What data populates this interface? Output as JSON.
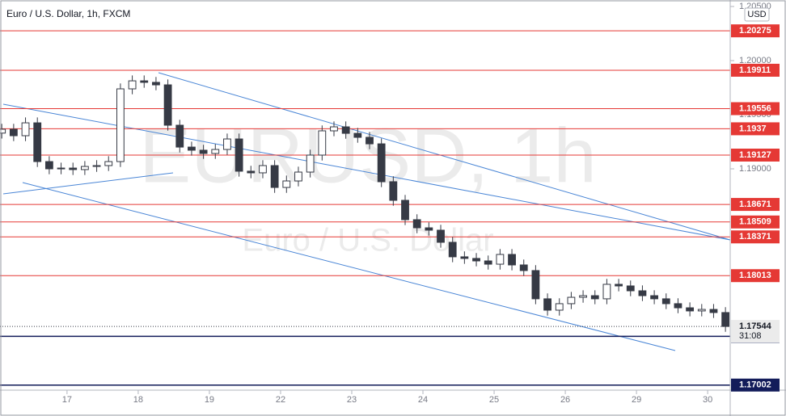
{
  "chart_data": {
    "type": "candlestick",
    "title": "Euro / U.S. Dollar, 1h, FXCM",
    "watermark": "EURUSD, 1h",
    "watermark_subtitle": "Euro / U.S. Dollar",
    "currency": "USD",
    "x": [
      2,
      6,
      10,
      14,
      18,
      22,
      26,
      30,
      34,
      38,
      42,
      46,
      50,
      54,
      58,
      62,
      66,
      70,
      74,
      78,
      82,
      86,
      90,
      94,
      98,
      102,
      106,
      110,
      114,
      118,
      122,
      126,
      130,
      134,
      138,
      142,
      146,
      150,
      154,
      158,
      162,
      166,
      170,
      174,
      178,
      182,
      186,
      190,
      194,
      198,
      202,
      206,
      210,
      214,
      218,
      222,
      226,
      230,
      234,
      238,
      242,
      246
    ],
    "open": [
      1.1933,
      1.19366,
      1.19306,
      1.19425,
      1.19067,
      1.19,
      1.19007,
      1.18993,
      1.19022,
      1.1903,
      1.19067,
      1.19739,
      1.19813,
      1.19799,
      1.19776,
      1.19403,
      1.19201,
      1.19172,
      1.19142,
      1.19179,
      1.19276,
      1.18978,
      1.18963,
      1.1903,
      1.18828,
      1.18888,
      1.1897,
      1.19127,
      1.19351,
      1.19388,
      1.19328,
      1.19291,
      1.19231,
      1.18881,
      1.18709,
      1.1853,
      1.18455,
      1.18433,
      1.18321,
      1.18187,
      1.18172,
      1.18149,
      1.18119,
      1.18209,
      1.18112,
      1.1806,
      1.17799,
      1.17694,
      1.17754,
      1.17813,
      1.17828,
      1.17799,
      1.17933,
      1.17918,
      1.17873,
      1.17828,
      1.17799,
      1.17754,
      1.17716,
      1.17687,
      1.17701,
      1.17672
    ],
    "high": [
      1.19416,
      1.19416,
      1.19475,
      1.19475,
      1.19117,
      1.19057,
      1.19057,
      1.19072,
      1.1908,
      1.19117,
      1.19789,
      1.19863,
      1.19863,
      1.19849,
      1.19826,
      1.19453,
      1.19251,
      1.19222,
      1.19229,
      1.19326,
      1.19326,
      1.19028,
      1.1908,
      1.1908,
      1.18938,
      1.1902,
      1.19177,
      1.19401,
      1.19438,
      1.19438,
      1.19378,
      1.19341,
      1.19281,
      1.18931,
      1.18759,
      1.1858,
      1.18505,
      1.18483,
      1.18371,
      1.18237,
      1.18222,
      1.18199,
      1.18259,
      1.18259,
      1.18162,
      1.1811,
      1.17849,
      1.17804,
      1.17863,
      1.17878,
      1.17878,
      1.17983,
      1.17983,
      1.17968,
      1.17923,
      1.17878,
      1.17849,
      1.17804,
      1.17766,
      1.17751,
      1.17751,
      1.17722
    ],
    "low": [
      1.1928,
      1.19256,
      1.19256,
      1.19017,
      1.1895,
      1.1895,
      1.18943,
      1.18943,
      1.18972,
      1.1898,
      1.19017,
      1.19689,
      1.19749,
      1.19726,
      1.19353,
      1.19151,
      1.19122,
      1.19092,
      1.19092,
      1.19129,
      1.18928,
      1.18913,
      1.18913,
      1.18778,
      1.18778,
      1.18838,
      1.1892,
      1.19077,
      1.19301,
      1.19278,
      1.19241,
      1.19181,
      1.18831,
      1.18659,
      1.1848,
      1.18405,
      1.18383,
      1.18271,
      1.18137,
      1.18122,
      1.18099,
      1.18069,
      1.18069,
      1.18062,
      1.1801,
      1.17749,
      1.17644,
      1.17644,
      1.17704,
      1.17763,
      1.17749,
      1.17749,
      1.17868,
      1.17823,
      1.17778,
      1.17749,
      1.17704,
      1.17666,
      1.17637,
      1.17637,
      1.17622,
      1.17494
    ],
    "close": [
      1.19366,
      1.19306,
      1.19425,
      1.19067,
      1.19,
      1.19007,
      1.18993,
      1.19022,
      1.1903,
      1.19067,
      1.19739,
      1.19813,
      1.19799,
      1.19776,
      1.19403,
      1.19201,
      1.19172,
      1.19142,
      1.19179,
      1.19276,
      1.18978,
      1.18963,
      1.1903,
      1.18828,
      1.18888,
      1.1897,
      1.19127,
      1.19351,
      1.19388,
      1.19328,
      1.19291,
      1.19231,
      1.18881,
      1.18709,
      1.1853,
      1.18455,
      1.18433,
      1.18321,
      1.18187,
      1.18172,
      1.18149,
      1.18119,
      1.18209,
      1.18112,
      1.1806,
      1.17799,
      1.17694,
      1.17754,
      1.17813,
      1.17828,
      1.17799,
      1.17933,
      1.17918,
      1.17873,
      1.17828,
      1.17799,
      1.17754,
      1.17716,
      1.17687,
      1.17701,
      1.17672,
      1.17544
    ],
    "up_color": "#ffffff",
    "down_color": "#363a45",
    "xlim": [
      1.4,
      247.6
    ],
    "xticks": [
      {
        "value": 24,
        "label": "17"
      },
      {
        "value": 48,
        "label": "18"
      },
      {
        "value": 72,
        "label": "19"
      },
      {
        "value": 96,
        "label": "22"
      },
      {
        "value": 120,
        "label": "23"
      },
      {
        "value": 144,
        "label": "24"
      },
      {
        "value": 168,
        "label": "25"
      },
      {
        "value": 192,
        "label": "26"
      },
      {
        "value": 216,
        "label": "29"
      },
      {
        "value": 240,
        "label": "30"
      }
    ],
    "ylim": [
      1.16955,
      1.2056
    ],
    "yticks": [
      {
        "value": 1.205,
        "label": "1.20500"
      },
      {
        "value": 1.2,
        "label": "1.20000"
      },
      {
        "value": 1.195,
        "label": "1.19500"
      },
      {
        "value": 1.19,
        "label": "1.19000"
      }
    ],
    "resistance_levels": [
      1.20275,
      1.19911,
      1.19556,
      1.1937,
      1.19127,
      1.18671,
      1.18509,
      1.18371,
      1.18013
    ],
    "resistance_color": "#e53935",
    "support_levels": [
      1.17452,
      1.17002
    ],
    "support_color": "#131c5a",
    "last_price": 1.17544,
    "countdown": "31:08"
  }
}
